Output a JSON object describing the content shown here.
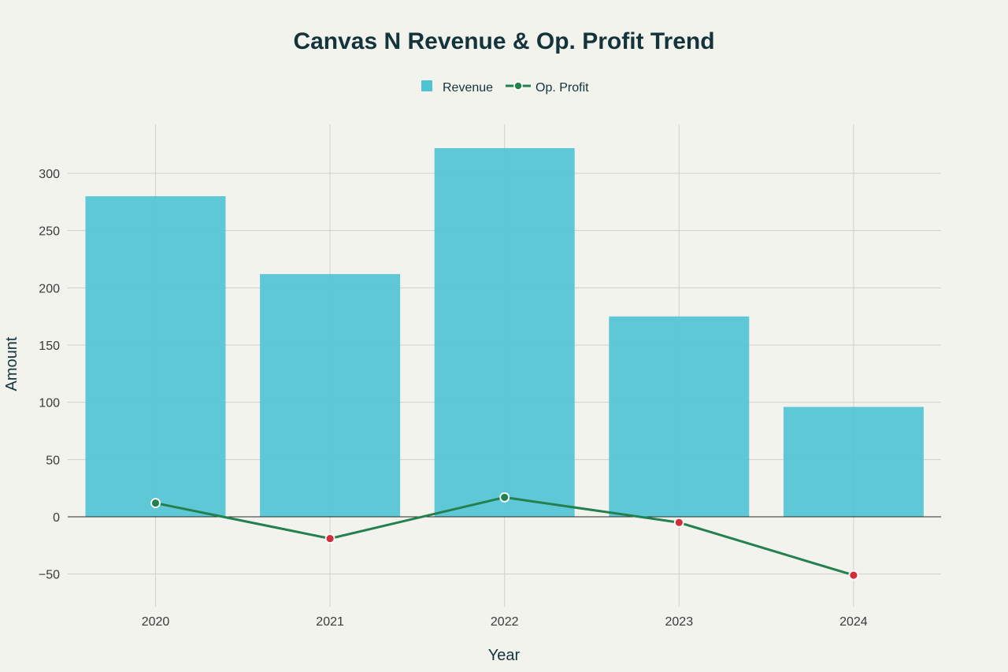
{
  "chart_data": {
    "type": "bar",
    "title": "Canvas N Revenue & Op. Profit Trend",
    "xlabel": "Year",
    "ylabel": "Amount",
    "categories": [
      "2020",
      "2021",
      "2022",
      "2023",
      "2024"
    ],
    "ylim": [
      -75,
      340
    ],
    "yticks": [
      -50,
      0,
      50,
      100,
      150,
      200,
      250,
      300
    ],
    "ytick_labels": [
      "−50",
      "0",
      "50",
      "100",
      "150",
      "200",
      "250",
      "300"
    ],
    "grid": true,
    "legend_position": "top-center",
    "series": [
      {
        "name": "Revenue",
        "type": "bar",
        "color": "#4fc3d3",
        "values": [
          280,
          212,
          322,
          175,
          96
        ]
      },
      {
        "name": "Op. Profit",
        "type": "line",
        "color": "#23804f",
        "values": [
          12,
          -19,
          17,
          -5,
          -51
        ],
        "positive_marker_color": "#23804f",
        "negative_marker_color": "#d1303a"
      }
    ],
    "legend": {
      "revenue_label": "Revenue",
      "profit_label": "Op. Profit"
    }
  }
}
